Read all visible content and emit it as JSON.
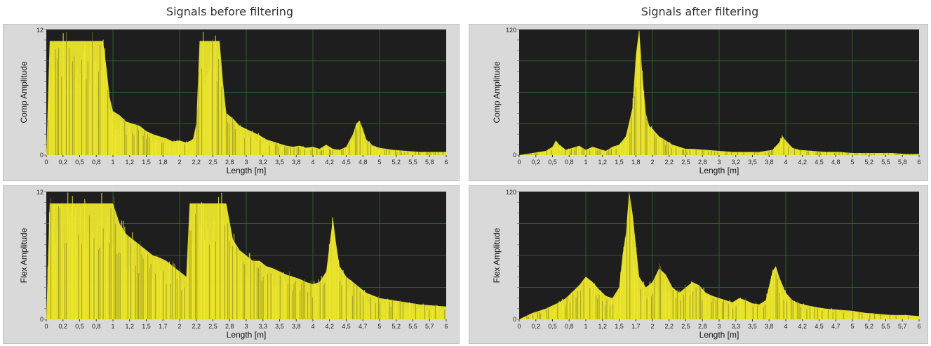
{
  "page": {
    "left_title": "Signals before filtering",
    "right_title": "Signals after filtering"
  },
  "colors": {
    "plot_bg": "#1e1e1e",
    "signal": "#f2ec2e",
    "grid": "#2f5a2f",
    "panel": "#d9d9d9"
  },
  "chart_data": [
    {
      "type": "area",
      "group": "Signals before filtering",
      "ylabel": "Comp Amplitude",
      "xlabel": "Length [m]",
      "xlim": [
        0,
        6
      ],
      "ylim": [
        0,
        12
      ],
      "y_ticks": [
        "0",
        "12"
      ],
      "x_ticks": [
        "0",
        "0,2",
        "0,5",
        "0,8",
        "1",
        "1,2",
        "1,5",
        "1,8",
        "2",
        "2,2",
        "2,5",
        "2,8",
        "3",
        "3,2",
        "3,5",
        "3,8",
        "4",
        "4,2",
        "4,5",
        "4,8",
        "5",
        "5,2",
        "5,5",
        "5,8",
        "6"
      ],
      "series": [
        {
          "x": [
            0,
            0.05,
            0.1,
            0.15,
            0.2,
            0.3,
            0.4,
            0.5,
            0.6,
            0.7,
            0.8,
            0.85,
            0.9,
            0.95,
            1.0,
            1.1,
            1.2,
            1.3,
            1.4,
            1.5,
            1.6,
            1.7,
            1.8,
            1.9,
            2.0,
            2.1,
            2.2,
            2.25,
            2.3,
            2.4,
            2.5,
            2.6,
            2.65,
            2.7,
            2.8,
            2.9,
            3.0,
            3.1,
            3.2,
            3.3,
            3.4,
            3.5,
            3.6,
            3.7,
            3.8,
            3.9,
            4.0,
            4.1,
            4.2,
            4.3,
            4.4,
            4.5,
            4.6,
            4.65,
            4.7,
            4.75,
            4.8,
            4.9,
            5.0,
            5.2,
            5.4,
            5.6,
            5.8,
            6.0
          ],
          "y": [
            0,
            10.9,
            10.9,
            10.9,
            10.9,
            10.9,
            10.9,
            10.9,
            10.9,
            10.9,
            10.9,
            10.9,
            8.5,
            5.5,
            4.2,
            3.8,
            3.2,
            3.0,
            2.8,
            2.3,
            2.0,
            1.8,
            1.6,
            1.3,
            1.4,
            1.2,
            1.5,
            3.0,
            10.9,
            10.9,
            10.9,
            10.9,
            7.0,
            4.0,
            3.5,
            2.8,
            2.5,
            2.2,
            1.9,
            1.5,
            1.3,
            1.1,
            0.9,
            0.8,
            0.9,
            0.7,
            0.8,
            0.6,
            1.0,
            0.6,
            0.5,
            0.8,
            2.0,
            3.0,
            3.3,
            2.5,
            1.5,
            0.9,
            0.7,
            0.5,
            0.4,
            0.3,
            0.3,
            0.3
          ]
        }
      ]
    },
    {
      "type": "area",
      "group": "Signals after filtering",
      "ylabel": "Comp Amplitude",
      "xlabel": "Length [m]",
      "xlim": [
        0,
        6
      ],
      "ylim": [
        0,
        120
      ],
      "y_ticks": [
        "0",
        "120"
      ],
      "x_ticks": [
        "0",
        "0,2",
        "0,5",
        "0,8",
        "1",
        "1,2",
        "1,5",
        "1,8",
        "2",
        "2,2",
        "2,5",
        "2,8",
        "3",
        "3,2",
        "3,5",
        "3,8",
        "4",
        "4,2",
        "4,5",
        "4,8",
        "5",
        "5,2",
        "5,5",
        "5,8",
        "6"
      ],
      "series": [
        {
          "x": [
            0,
            0.2,
            0.4,
            0.5,
            0.55,
            0.6,
            0.7,
            0.8,
            0.9,
            1.0,
            1.1,
            1.2,
            1.3,
            1.4,
            1.5,
            1.6,
            1.7,
            1.75,
            1.8,
            1.85,
            1.9,
            1.95,
            2.0,
            2.1,
            2.2,
            2.3,
            2.4,
            2.5,
            2.6,
            2.8,
            3.0,
            3.2,
            3.4,
            3.6,
            3.8,
            3.9,
            3.95,
            4.0,
            4.1,
            4.2,
            4.4,
            4.6,
            4.8,
            5.0,
            5.2,
            5.4,
            5.6,
            5.8,
            6.0
          ],
          "y": [
            0,
            2,
            4,
            8,
            14,
            10,
            5,
            7,
            9,
            5,
            8,
            6,
            4,
            8,
            10,
            18,
            45,
            95,
            120,
            75,
            40,
            28,
            25,
            18,
            14,
            10,
            8,
            6,
            6,
            5,
            4,
            3,
            3,
            3,
            5,
            12,
            18,
            14,
            7,
            5,
            4,
            3,
            3,
            2,
            2,
            2,
            2,
            1,
            1
          ]
        }
      ]
    },
    {
      "type": "area",
      "group": "Signals before filtering",
      "ylabel": "Flex Amplitude",
      "xlabel": "Length [m]",
      "xlim": [
        0,
        6
      ],
      "ylim": [
        0,
        12
      ],
      "y_ticks": [
        "0",
        "12"
      ],
      "x_ticks": [
        "0",
        "0,2",
        "0,5",
        "0,8",
        "1",
        "1,2",
        "1,5",
        "1,7",
        "2",
        "2,2",
        "2,5",
        "2,8",
        "3",
        "3,3",
        "3,5",
        "3,8",
        "4",
        "4,2",
        "4,5",
        "4,7",
        "5",
        "5,2",
        "5,5",
        "5,7",
        "6"
      ],
      "series": [
        {
          "x": [
            0,
            0.05,
            0.1,
            0.2,
            0.3,
            0.4,
            0.5,
            0.6,
            0.7,
            0.8,
            0.9,
            1.0,
            1.1,
            1.2,
            1.3,
            1.4,
            1.5,
            1.6,
            1.7,
            1.8,
            1.9,
            2.0,
            2.1,
            2.15,
            2.2,
            2.3,
            2.4,
            2.5,
            2.6,
            2.7,
            2.8,
            2.9,
            3.0,
            3.1,
            3.2,
            3.3,
            3.4,
            3.5,
            3.6,
            3.7,
            3.8,
            3.9,
            4.0,
            4.1,
            4.2,
            4.3,
            4.35,
            4.4,
            4.5,
            4.6,
            4.7,
            4.8,
            5.0,
            5.2,
            5.4,
            5.6,
            5.8,
            6.0
          ],
          "y": [
            0,
            10.9,
            10.9,
            10.9,
            10.9,
            10.9,
            10.9,
            10.9,
            10.9,
            10.9,
            10.9,
            10.9,
            9.0,
            8.0,
            7.5,
            7.0,
            6.5,
            6.0,
            5.8,
            5.5,
            5.0,
            4.5,
            4.0,
            10.9,
            10.9,
            10.9,
            10.9,
            10.9,
            10.9,
            10.9,
            7.5,
            6.5,
            6.0,
            5.5,
            5.5,
            5.0,
            4.8,
            4.5,
            4.2,
            4.0,
            3.8,
            3.5,
            3.3,
            3.5,
            4.5,
            9.5,
            7.0,
            5.0,
            4.0,
            3.5,
            3.0,
            2.5,
            2.0,
            1.8,
            1.6,
            1.4,
            1.3,
            1.2
          ]
        }
      ]
    },
    {
      "type": "area",
      "group": "Signals after filtering",
      "ylabel": "Flex Amplitude",
      "xlabel": "Length [m]",
      "xlim": [
        0,
        6
      ],
      "ylim": [
        0,
        120
      ],
      "y_ticks": [
        "0",
        "120"
      ],
      "x_ticks": [
        "0",
        "0,2",
        "0,5",
        "0,8",
        "1",
        "1,2",
        "1,5",
        "1,7",
        "2",
        "2,2",
        "2,5",
        "2,8",
        "3",
        "3,3",
        "3,5",
        "3,8",
        "4",
        "4,2",
        "4,5",
        "4,7",
        "5",
        "5,2",
        "5,5",
        "5,7",
        "6"
      ],
      "series": [
        {
          "x": [
            0,
            0.1,
            0.2,
            0.3,
            0.4,
            0.5,
            0.6,
            0.7,
            0.8,
            0.9,
            1.0,
            1.1,
            1.2,
            1.3,
            1.4,
            1.5,
            1.55,
            1.6,
            1.65,
            1.7,
            1.75,
            1.8,
            1.9,
            2.0,
            2.1,
            2.2,
            2.3,
            2.4,
            2.5,
            2.6,
            2.7,
            2.8,
            2.9,
            3.0,
            3.1,
            3.2,
            3.3,
            3.4,
            3.5,
            3.6,
            3.7,
            3.8,
            3.85,
            3.9,
            4.0,
            4.1,
            4.2,
            4.4,
            4.6,
            4.8,
            5.0,
            5.2,
            5.4,
            5.6,
            5.8,
            6.0
          ],
          "y": [
            0,
            3,
            6,
            8,
            10,
            13,
            16,
            20,
            26,
            32,
            40,
            35,
            28,
            22,
            20,
            30,
            60,
            80,
            120,
            100,
            70,
            40,
            30,
            35,
            48,
            42,
            30,
            25,
            30,
            35,
            32,
            25,
            22,
            20,
            18,
            16,
            20,
            18,
            15,
            14,
            18,
            45,
            50,
            40,
            25,
            18,
            15,
            12,
            10,
            9,
            8,
            6,
            5,
            4,
            4,
            3
          ]
        }
      ]
    }
  ]
}
